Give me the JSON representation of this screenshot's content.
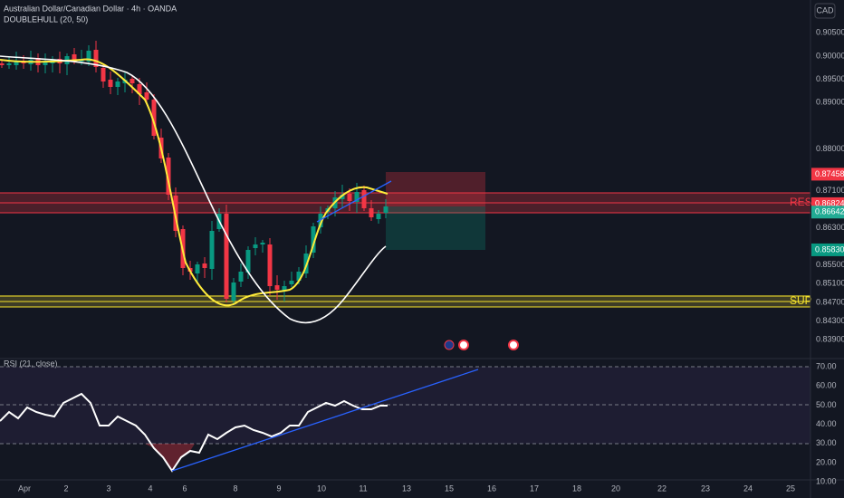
{
  "header": {
    "symbol": "Australian Dollar/Canadian Dollar · 4h · OANDA",
    "indicator": "DOUBLEHULL (20, 50)",
    "currency": "CAD"
  },
  "price_axis": [
    "0.90500",
    "0.90000",
    "0.89500",
    "0.89000",
    "0.88000",
    "0.87100",
    "0.86300",
    "0.85500",
    "0.85100",
    "0.84700",
    "0.84300",
    "0.83900"
  ],
  "price_badges": [
    {
      "label": "0.87458",
      "color": "#f23645"
    },
    {
      "label": "0.86824",
      "color": "#f23645"
    },
    {
      "label": "0.86642",
      "color": "#22ab94"
    },
    {
      "label": "0.85830",
      "color": "#089981"
    }
  ],
  "zones": {
    "resistance": "RES",
    "support": "SUP"
  },
  "rsi": {
    "title": "RSI (21, close)",
    "axis": [
      "70.00",
      "60.00",
      "50.00",
      "40.00",
      "30.00",
      "20.00",
      "10.00"
    ]
  },
  "time_axis": [
    "Apr",
    "2",
    "3",
    "4",
    "6",
    "8",
    "9",
    "10",
    "11",
    "13",
    "15",
    "16",
    "17",
    "18",
    "20",
    "22",
    "23",
    "24",
    "25"
  ]
}
